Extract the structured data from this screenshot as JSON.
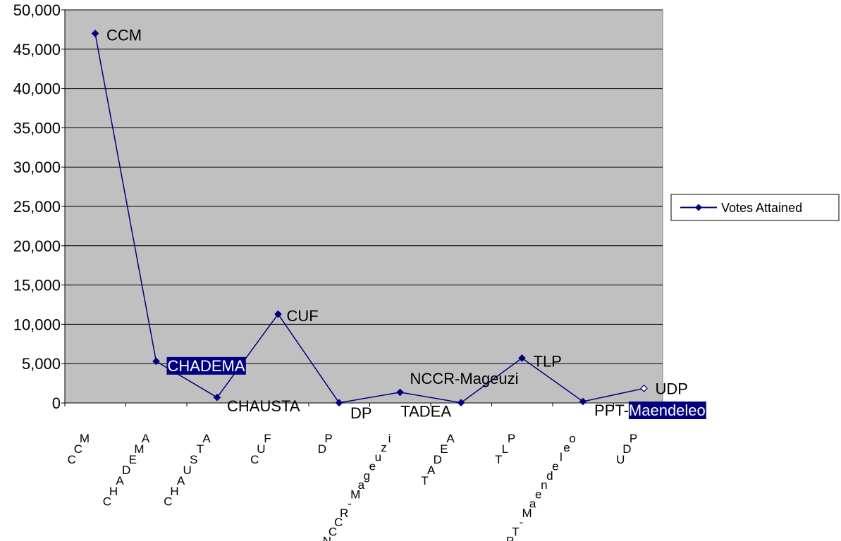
{
  "chart_data": {
    "type": "line",
    "categories": [
      "CCM",
      "CHADEMA",
      "CHAUSTA",
      "CUF",
      "DP",
      "NCCR-Mageuzi",
      "TADEA",
      "TLP",
      "PPT-Maendeleo",
      "UDP"
    ],
    "series": [
      {
        "name": "Votes Attained",
        "values": [
          47000,
          5300,
          700,
          11300,
          20,
          1350,
          30,
          5700,
          180,
          1850
        ]
      }
    ],
    "data_labels": [
      "CCM",
      "CHADEMA",
      "CHAUSTA",
      "CUF",
      "DP",
      "NCCR-Mageuzi",
      "TADEA",
      "TLP",
      "PPT-Maendeleo",
      "UDP"
    ],
    "ylim": [
      0,
      50000
    ],
    "yticks": [
      0,
      5000,
      10000,
      15000,
      20000,
      25000,
      30000,
      35000,
      40000,
      45000,
      50000
    ],
    "ytick_labels": [
      "0",
      "5,000",
      "10,000",
      "15,000",
      "20,000",
      "25,000",
      "30,000",
      "35,000",
      "40,000",
      "45,000",
      "50,000"
    ],
    "grid": true,
    "legend_position": "right",
    "colors": {
      "plot_background": "#c0c0c0",
      "line": "#000080",
      "highlight_background": "#000080",
      "highlight_text": "#ffffff"
    }
  }
}
